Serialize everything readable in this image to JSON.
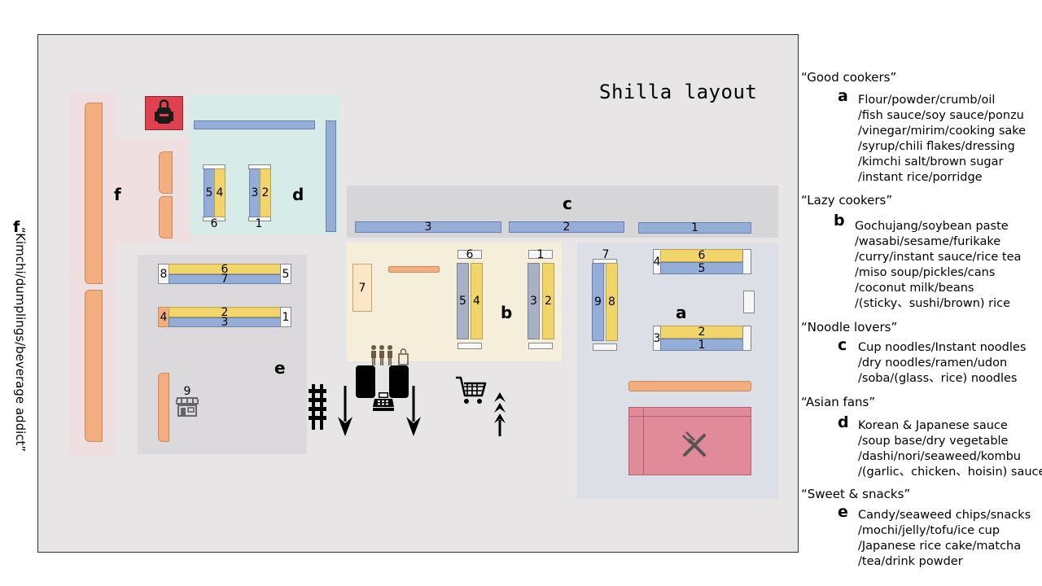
{
  "title": "Shilla layout",
  "side_label": "“Kimchi/dumplings/beverage addict”",
  "zones": {
    "a": "a",
    "b": "b",
    "c": "c",
    "d": "d",
    "e": "e",
    "f": "f"
  },
  "shelves": {
    "d": [
      "5",
      "4",
      "3",
      "2",
      "6",
      "1"
    ],
    "c": [
      "3",
      "2",
      "1"
    ],
    "e": [
      "8",
      "6",
      "7",
      "5",
      "4",
      "2",
      "3",
      "1",
      "9"
    ],
    "b": [
      "7",
      "6",
      "5",
      "4",
      "1",
      "3",
      "2"
    ],
    "a": [
      "7",
      "9",
      "8",
      "4",
      "6",
      "5",
      "2",
      "3",
      "1"
    ]
  },
  "legend": [
    {
      "heading": "“Good cookers”",
      "letter": "a",
      "lines": [
        "Flour/powder/crumb/oil",
        "/fish sauce/soy sauce/ponzu",
        "/vinegar/mirim/cooking sake",
        "/syrup/chili flakes/dressing",
        "/kimchi salt/brown sugar",
        "/instant rice/porridge"
      ]
    },
    {
      "heading": "“Lazy cookers”",
      "letter": "b",
      "lines": [
        "Gochujang/soybean paste",
        "/wasabi/sesame/furikake",
        "/curry/instant sauce/rice tea",
        "/miso soup/pickles/cans",
        "/coconut milk/beans",
        "/(sticky、sushi/brown) rice"
      ]
    },
    {
      "heading": "“Noodle lovers”",
      "letter": "c",
      "lines": [
        "Cup noodles/Instant noodles",
        "/dry noodles/ramen/udon",
        "/soba/(glass、rice) noodles"
      ]
    },
    {
      "heading": "“Asian fans”",
      "letter": "d",
      "lines": [
        "Korean & Japanese sauce",
        "/soup base/dry vegetable",
        "/dashi/nori/seaweed/kombu",
        "/(garlic、chicken、hoisin) sauce"
      ]
    },
    {
      "heading": "“Sweet & snacks”",
      "letter": "e",
      "lines": [
        "Candy/seaweed chips/snacks",
        "/mochi/jelly/tofu/ice cup",
        "/Japanese rice cake/matcha",
        "/tea/drink powder"
      ]
    }
  ],
  "colors": {
    "frame_bg": "#e7e5e6",
    "shelf_orange": "#f2ae7e",
    "shelf_blue": "#94aed8",
    "shelf_yellow": "#f2d56a",
    "lockers_red": "#e0414f",
    "restaurant_pink": "#e08a9a"
  },
  "icons": [
    "lockers-icon",
    "cutlery-icon",
    "shop-stall-icon",
    "people-shopping-icon",
    "cash-register-icon",
    "shopping-cart-icon",
    "exit-arrow-icon",
    "entry-arrows-icon",
    "turnstile-icon"
  ]
}
